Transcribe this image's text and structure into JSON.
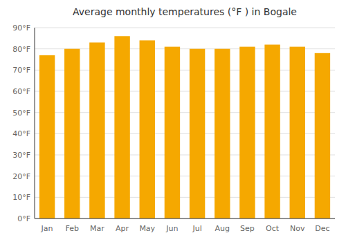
{
  "chart_data": {
    "type": "bar",
    "title": "Average monthly temperatures (°F ) in Bogale",
    "categories": [
      "Jan",
      "Feb",
      "Mar",
      "Apr",
      "May",
      "Jun",
      "Jul",
      "Aug",
      "Sep",
      "Oct",
      "Nov",
      "Dec"
    ],
    "values": [
      77,
      80,
      83,
      86,
      84,
      81,
      80,
      80,
      81,
      82,
      81,
      78
    ],
    "color": "#F5A800",
    "ylim": [
      0,
      90
    ],
    "yticks": [
      {
        "value": 0,
        "label": "0°F"
      },
      {
        "value": 10,
        "label": "10°F"
      },
      {
        "value": 20,
        "label": "20°F"
      },
      {
        "value": 30,
        "label": "30°F"
      },
      {
        "value": 40,
        "label": "40°F"
      },
      {
        "value": 50,
        "label": "50°F"
      },
      {
        "value": 60,
        "label": "60°F"
      },
      {
        "value": 70,
        "label": "70°F"
      },
      {
        "value": 80,
        "label": "80°F"
      },
      {
        "value": 90,
        "label": "90°F"
      }
    ],
    "grid": true
  }
}
